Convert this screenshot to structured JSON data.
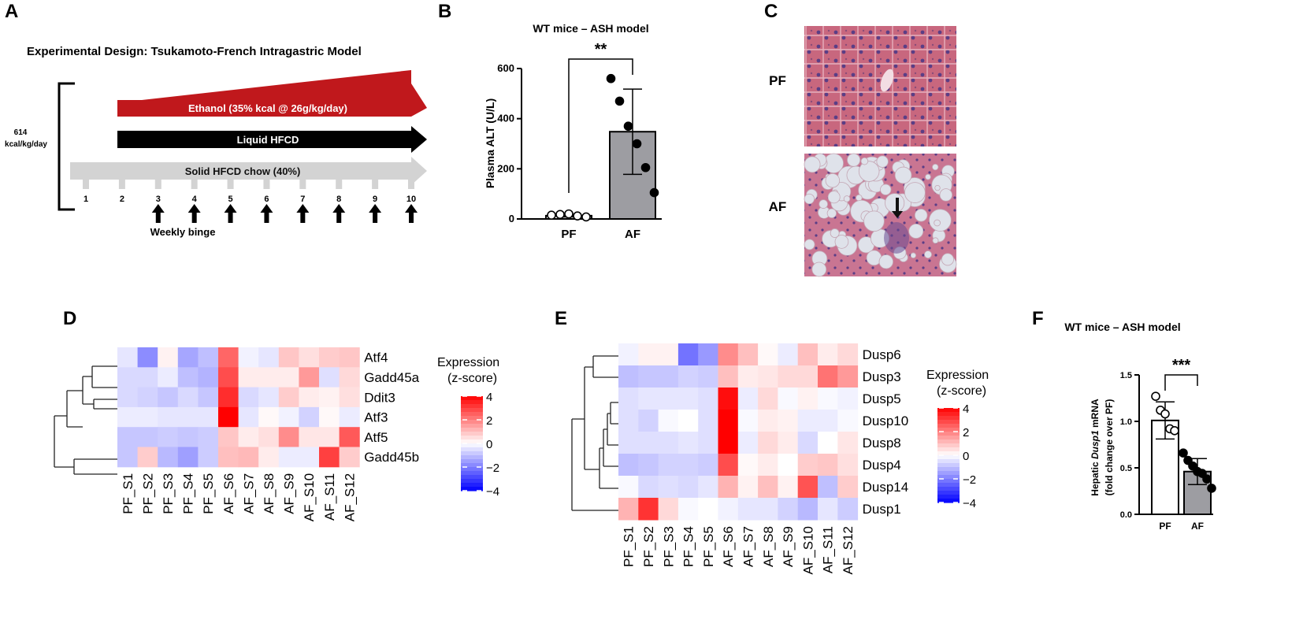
{
  "panel_letters": {
    "A": "A",
    "B": "B",
    "C": "C",
    "D": "D",
    "E": "E",
    "F": "F"
  },
  "colors": {
    "ethanol": "#c0181c",
    "hfcd": "#000000",
    "chow": "#d3d3d3",
    "bar_af": "#9d9da2",
    "heat_low": "#0000ff",
    "heat_mid": "#ffffff",
    "heat_high": "#ff0000"
  },
  "panel_a": {
    "title": "Experimental Design: Tsukamoto-French Intragastric Model",
    "kcal_line1": "614",
    "kcal_line2": "kcal/kg/day",
    "ethanol_label": "Ethanol (35% kcal @ 26g/kg/day)",
    "hfcd_label": "Liquid HFCD",
    "chow_label": "Solid HFCD chow (40%)",
    "weeks": [
      "1",
      "2",
      "3",
      "4",
      "5",
      "6",
      "7",
      "8",
      "9",
      "10"
    ],
    "binge_label": "Weekly binge"
  },
  "panel_b": {
    "title": "WT mice – ASH model",
    "significance": "**",
    "chart_data": {
      "type": "bar",
      "categories": [
        "PF",
        "AF"
      ],
      "values": [
        13,
        348
      ],
      "error_sd": [
        5,
        170
      ],
      "points": {
        "PF": [
          15,
          18,
          20,
          12,
          8
        ],
        "AF": [
          560,
          470,
          370,
          300,
          205,
          105
        ]
      },
      "ylabel": "Plasma ALT (U/L)",
      "ylim": [
        0,
        600
      ],
      "yticks": [
        "0",
        "200",
        "400",
        "600"
      ]
    }
  },
  "panel_c": {
    "pf_label": "PF",
    "af_label": "AF"
  },
  "panel_d": {
    "legend_title_1": "Expression",
    "legend_title_2": "(z-score)",
    "legend_ticks": [
      "4",
      "2",
      "0",
      "−2",
      "−4"
    ],
    "chart_data": {
      "type": "heatmap",
      "columns": [
        "PF_S1",
        "PF_S2",
        "PF_S3",
        "PF_S4",
        "PF_S5",
        "AF_S6",
        "AF_S7",
        "AF_S8",
        "AF_S9",
        "AF_S10",
        "AF_S11",
        "AF_S12"
      ],
      "rows": [
        "Atf4",
        "Gadd45a",
        "Ddit3",
        "Atf3",
        "Atf5",
        "Gadd45b"
      ],
      "values": [
        [
          -0.4,
          -1.8,
          0.2,
          -1.4,
          -1.0,
          2.4,
          -0.2,
          -0.4,
          0.9,
          0.5,
          0.8,
          0.9
        ],
        [
          -0.6,
          -0.6,
          -0.3,
          -1.0,
          -1.2,
          2.8,
          0.3,
          0.3,
          0.3,
          1.6,
          -0.5,
          0.6
        ],
        [
          -0.6,
          -0.7,
          -0.9,
          -0.6,
          -0.9,
          3.3,
          -0.6,
          -0.4,
          0.8,
          0.3,
          0.2,
          0.5
        ],
        [
          -0.3,
          -0.3,
          -0.4,
          -0.4,
          -0.4,
          4.0,
          -0.4,
          0.1,
          -0.2,
          -0.7,
          0.1,
          -0.3
        ],
        [
          -0.9,
          -0.9,
          -0.8,
          -0.9,
          -0.8,
          0.9,
          0.3,
          0.5,
          1.8,
          0.4,
          0.4,
          2.6
        ],
        [
          -0.9,
          0.8,
          -1.1,
          -1.5,
          -0.8,
          1.0,
          1.1,
          0.3,
          -0.3,
          -0.3,
          3.0,
          0.8
        ]
      ]
    }
  },
  "panel_e": {
    "legend_title_1": "Expression",
    "legend_title_2": "(z-score)",
    "legend_ticks": [
      "4",
      "2",
      "0",
      "−2",
      "−4"
    ],
    "chart_data": {
      "type": "heatmap",
      "columns": [
        "PF_S1",
        "PF_S2",
        "PF_S3",
        "PF_S4",
        "PF_S5",
        "AF_S6",
        "AF_S7",
        "AF_S8",
        "AF_S9",
        "AF_S10",
        "AF_S11",
        "AF_S12"
      ],
      "rows": [
        "Dusp6",
        "Dusp3",
        "Dusp5",
        "Dusp10",
        "Dusp8",
        "Dusp4",
        "Dusp14",
        "Dusp1"
      ],
      "values": [
        [
          -0.2,
          0.2,
          0.2,
          -2.2,
          -1.6,
          1.8,
          1.0,
          0.1,
          -0.3,
          1.0,
          0.3,
          0.6
        ],
        [
          -1.0,
          -0.9,
          -0.9,
          -0.7,
          -0.8,
          1.0,
          0.3,
          0.4,
          0.6,
          0.6,
          2.2,
          1.6
        ],
        [
          -0.5,
          -0.4,
          -0.4,
          -0.4,
          -0.5,
          3.8,
          -0.3,
          0.6,
          -0.1,
          0.2,
          -0.1,
          -0.2
        ],
        [
          -0.5,
          -0.7,
          -0.1,
          0.0,
          -0.5,
          4.0,
          -0.1,
          0.3,
          0.2,
          -0.3,
          -0.3,
          -0.1
        ],
        [
          -0.5,
          -0.5,
          -0.5,
          -0.4,
          -0.5,
          4.0,
          -0.3,
          0.6,
          0.3,
          -0.6,
          0.0,
          0.4
        ],
        [
          -1.0,
          -0.9,
          -0.7,
          -0.7,
          -0.8,
          2.8,
          0.1,
          0.3,
          0.0,
          0.8,
          0.9,
          0.5
        ],
        [
          -0.1,
          -0.6,
          -0.5,
          -0.6,
          -0.4,
          1.2,
          0.2,
          1.0,
          0.2,
          2.7,
          -1.0,
          0.8
        ],
        [
          1.2,
          3.2,
          0.6,
          -0.1,
          0.0,
          -0.2,
          -0.4,
          -0.4,
          -0.7,
          -1.1,
          -0.4,
          -0.8
        ]
      ]
    }
  },
  "panel_f": {
    "title": "WT mice – ASH model",
    "significance": "***",
    "ylabel_prefix": "Hepatic ",
    "ylabel_gene": "Dusp1",
    "ylabel_suffix": " mRNA",
    "ylabel_line2": "(fold change over PF)",
    "chart_data": {
      "type": "bar",
      "categories": [
        "PF",
        "AF"
      ],
      "values": [
        1.01,
        0.46
      ],
      "error_sd": [
        0.2,
        0.14
      ],
      "points": {
        "PF": [
          1.27,
          1.12,
          1.08,
          0.92,
          0.9
        ],
        "AF": [
          0.66,
          0.58,
          0.52,
          0.46,
          0.44,
          0.38,
          0.28
        ]
      },
      "ylim": [
        0,
        1.5
      ],
      "yticks": [
        "0.0",
        "0.5",
        "1.0",
        "1.5"
      ]
    }
  }
}
